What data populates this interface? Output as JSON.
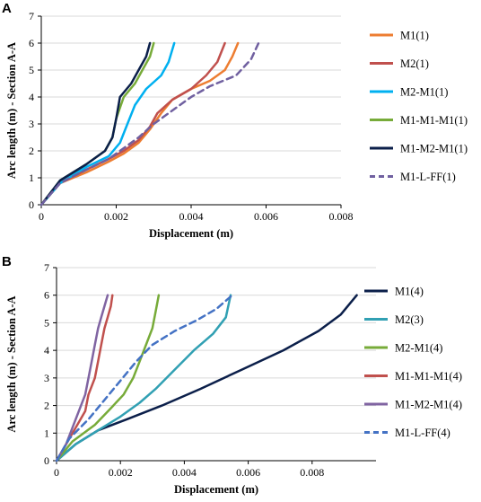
{
  "chart_data": [
    {
      "panel": "A",
      "type": "line",
      "xlabel": "Displacement (m)",
      "ylabel": "Arc length (m) - Section A-A",
      "xlim": [
        0,
        0.008
      ],
      "ylim": [
        0,
        7
      ],
      "xticks": [
        "0",
        "0.002",
        "0.004",
        "0.006",
        "0.008"
      ],
      "yticks": [
        "0",
        "1",
        "2",
        "3",
        "4",
        "5",
        "6",
        "7"
      ],
      "xtick_values": [
        0,
        0.002,
        0.004,
        0.006,
        0.008
      ],
      "ytick_values": [
        0,
        1,
        2,
        3,
        4,
        5,
        6,
        7
      ],
      "grid": "horizontal",
      "legend": "right",
      "series": [
        {
          "name": "M1(1)",
          "color": "#ed7d31",
          "dash": false,
          "x": [
            0,
            0.0005,
            0.0012,
            0.0018,
            0.0022,
            0.0026,
            0.0029,
            0.0032,
            0.0035,
            0.004,
            0.0045,
            0.0049,
            0.0051,
            0.00525
          ],
          "y": [
            0,
            0.8,
            1.2,
            1.6,
            1.9,
            2.3,
            2.8,
            3.4,
            3.9,
            4.3,
            4.6,
            5.0,
            5.5,
            6.0
          ]
        },
        {
          "name": "M2(1)",
          "color": "#c0504d",
          "dash": false,
          "x": [
            0,
            0.0005,
            0.0012,
            0.0018,
            0.0022,
            0.0026,
            0.0029,
            0.0031,
            0.0035,
            0.004,
            0.0044,
            0.0047,
            0.0049
          ],
          "y": [
            0,
            0.8,
            1.3,
            1.7,
            2.0,
            2.4,
            2.9,
            3.4,
            3.9,
            4.3,
            4.8,
            5.3,
            6.0
          ]
        },
        {
          "name": "M2-M1(1)",
          "color": "#00b0f0",
          "dash": false,
          "x": [
            0,
            0.0005,
            0.0012,
            0.0018,
            0.0021,
            0.0023,
            0.0025,
            0.0028,
            0.0032,
            0.0034,
            0.00355
          ],
          "y": [
            0,
            0.8,
            1.4,
            1.8,
            2.3,
            3.0,
            3.7,
            4.3,
            4.8,
            5.3,
            6.0
          ]
        },
        {
          "name": "M1-M1-M1(1)",
          "color": "#77ab39",
          "dash": false,
          "x": [
            0,
            0.0005,
            0.0012,
            0.0017,
            0.0019,
            0.002,
            0.0022,
            0.0025,
            0.0027,
            0.0029,
            0.003
          ],
          "y": [
            0,
            0.9,
            1.5,
            2.0,
            2.5,
            3.2,
            4.0,
            4.5,
            5.0,
            5.5,
            6.0
          ]
        },
        {
          "name": "M1-M2-M1(1)",
          "color": "#0b1f4a",
          "dash": false,
          "x": [
            0,
            0.0005,
            0.0012,
            0.0017,
            0.0019,
            0.002,
            0.0021,
            0.0024,
            0.0026,
            0.0028,
            0.0029
          ],
          "y": [
            0,
            0.9,
            1.5,
            2.0,
            2.5,
            3.2,
            4.0,
            4.5,
            5.0,
            5.5,
            6.0
          ]
        },
        {
          "name": "M1-L-FF(1)",
          "color": "#7060a0",
          "dash": true,
          "x": [
            0,
            0.0005,
            0.0012,
            0.0018,
            0.0022,
            0.0026,
            0.003,
            0.0035,
            0.004,
            0.0045,
            0.0052,
            0.0056,
            0.0058
          ],
          "y": [
            0,
            0.8,
            1.3,
            1.7,
            2.1,
            2.5,
            3.0,
            3.5,
            4.0,
            4.4,
            4.8,
            5.4,
            6.0
          ]
        }
      ]
    },
    {
      "panel": "B",
      "type": "line",
      "xlabel": "Displacement (m)",
      "ylabel": "Arc length (m) - Section A-A",
      "xlim": [
        0,
        0.01
      ],
      "ylim": [
        0,
        7
      ],
      "xticks": [
        "0",
        "0.002",
        "0.004",
        "0.006",
        "0.008"
      ],
      "yticks": [
        "0",
        "1",
        "2",
        "3",
        "4",
        "5",
        "6",
        "7"
      ],
      "xtick_values": [
        0,
        0.002,
        0.004,
        0.006,
        0.008
      ],
      "ytick_values": [
        0,
        1,
        2,
        3,
        4,
        5,
        6,
        7
      ],
      "grid": "horizontal",
      "legend": "right",
      "series": [
        {
          "name": "M1(4)",
          "color": "#0b1f4a",
          "dash": false,
          "x": [
            0,
            0.0006,
            0.0013,
            0.0022,
            0.0033,
            0.0045,
            0.0058,
            0.0071,
            0.0082,
            0.0089,
            0.0094
          ],
          "y": [
            0,
            0.6,
            1.1,
            1.5,
            2.0,
            2.6,
            3.3,
            4.0,
            4.7,
            5.3,
            6.0
          ]
        },
        {
          "name": "M2(3)",
          "color": "#31a0b3",
          "dash": false,
          "x": [
            0,
            0.0006,
            0.0013,
            0.002,
            0.0026,
            0.0031,
            0.0037,
            0.0043,
            0.0049,
            0.0053,
            0.00545
          ],
          "y": [
            0,
            0.6,
            1.1,
            1.6,
            2.1,
            2.6,
            3.3,
            4.0,
            4.6,
            5.2,
            6.0
          ]
        },
        {
          "name": "M2-M1(4)",
          "color": "#77ab39",
          "dash": false,
          "x": [
            0,
            0.0005,
            0.0012,
            0.0017,
            0.0021,
            0.0024,
            0.0026,
            0.0028,
            0.003,
            0.0031,
            0.0032
          ],
          "y": [
            0,
            0.7,
            1.3,
            1.9,
            2.4,
            3.0,
            3.6,
            4.2,
            4.8,
            5.4,
            6.0
          ]
        },
        {
          "name": "M1-M1-M1(4)",
          "color": "#c0504d",
          "dash": false,
          "x": [
            0,
            0.0003,
            0.0006,
            0.0009,
            0.001,
            0.0012,
            0.0013,
            0.0014,
            0.0015,
            0.0016,
            0.0017,
            0.00175
          ],
          "y": [
            0,
            0.6,
            1.2,
            1.8,
            2.4,
            3.0,
            3.6,
            4.2,
            4.8,
            5.2,
            5.6,
            6.0
          ]
        },
        {
          "name": "M1-M2-M1(4)",
          "color": "#8064a2",
          "dash": false,
          "x": [
            0,
            0.0003,
            0.0005,
            0.0007,
            0.0009,
            0.001,
            0.0011,
            0.0012,
            0.0013,
            0.0014,
            0.0015,
            0.0016
          ],
          "y": [
            0,
            0.6,
            1.2,
            1.8,
            2.4,
            3.0,
            3.6,
            4.2,
            4.8,
            5.2,
            5.6,
            6.0
          ]
        },
        {
          "name": "M1-L-FF(4)",
          "color": "#4472c4",
          "dash": true,
          "x": [
            0,
            0.0004,
            0.001,
            0.0015,
            0.002,
            0.0025,
            0.003,
            0.0037,
            0.0044,
            0.005,
            0.0055
          ],
          "y": [
            0,
            0.8,
            1.5,
            2.2,
            2.9,
            3.6,
            4.2,
            4.7,
            5.1,
            5.5,
            6.0
          ]
        }
      ]
    }
  ]
}
